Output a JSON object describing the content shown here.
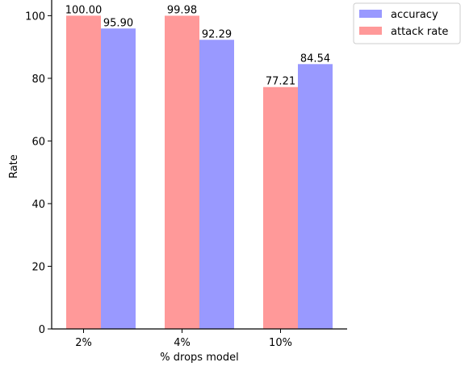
{
  "chart_data": {
    "type": "bar",
    "categories": [
      "2%",
      "4%",
      "10%"
    ],
    "series": [
      {
        "name": "attack rate",
        "values": [
          100.0,
          99.98,
          77.21
        ],
        "labels": [
          "100.00",
          "99.98",
          "77.21"
        ],
        "color": "#ff9999"
      },
      {
        "name": "accuracy",
        "values": [
          95.9,
          92.29,
          84.54
        ],
        "labels": [
          "95.90",
          "92.29",
          "84.54"
        ],
        "color": "#9999ff"
      }
    ],
    "legend_order": [
      "accuracy",
      "attack rate"
    ],
    "legend_position": "outside top-right",
    "title": "",
    "xlabel": "% drops model",
    "ylabel": "Rate",
    "ylim": [
      0,
      105
    ],
    "yticks": [
      0,
      20,
      40,
      60,
      80,
      100
    ],
    "ytick_labels": [
      "0",
      "20",
      "40",
      "60",
      "80",
      "100"
    ],
    "grid": false,
    "spines": "left and bottom only"
  }
}
